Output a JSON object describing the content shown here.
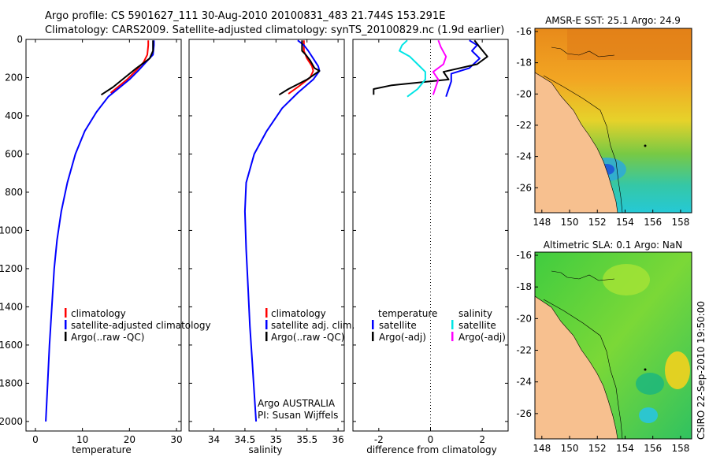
{
  "title": {
    "line1": "Argo profile: CS 5901627_111 30-Aug-2010 20100831_483 21.744S 153.291E",
    "line2": "Climatology: CARS2009. Satellite-adjusted climatology: synTS_20100829.nc (1.9d earlier)"
  },
  "colors": {
    "climatology": "#ff0000",
    "satellite": "#0000ff",
    "argo": "#000000",
    "cyan": "#00e5e5",
    "magenta": "#ff00ff",
    "land": "#f7c08f"
  },
  "footer_text": "CSIRO  22-Sep-2010 19:50:00",
  "credit": {
    "line1": "Argo AUSTRALIA",
    "line2": "PI: Susan Wijffels"
  },
  "chart_data": [
    {
      "type": "line",
      "xlabel": "temperature",
      "xlim": [
        -2,
        31
      ],
      "ylim": [
        0,
        2050
      ],
      "y_reversed": true,
      "xticks": [
        0,
        10,
        20,
        30
      ],
      "yticks": [
        0,
        200,
        400,
        600,
        800,
        1000,
        1200,
        1400,
        1600,
        1800,
        2000
      ],
      "legend": [
        "climatology",
        "satellite-adjusted climatology",
        "Argo(..raw -QC)"
      ],
      "series": [
        {
          "name": "climatology",
          "color": "#ff0000",
          "points": [
            [
              24,
              5
            ],
            [
              24,
              30
            ],
            [
              23.8,
              80
            ],
            [
              23,
              120
            ],
            [
              21.5,
              160
            ],
            [
              19.5,
              210
            ],
            [
              17.5,
              250
            ],
            [
              16,
              280
            ]
          ]
        },
        {
          "name": "satellite-adjusted climatology",
          "color": "#0000ff",
          "points": [
            [
              25.2,
              5
            ],
            [
              25.2,
              30
            ],
            [
              25,
              80
            ],
            [
              23.5,
              120
            ],
            [
              22,
              160
            ],
            [
              20,
              210
            ],
            [
              18,
              250
            ],
            [
              15.5,
              300
            ],
            [
              13,
              380
            ],
            [
              10.5,
              480
            ],
            [
              8.5,
              600
            ],
            [
              6.8,
              750
            ],
            [
              5.5,
              900
            ],
            [
              4.6,
              1050
            ],
            [
              4,
              1200
            ],
            [
              3.5,
              1400
            ],
            [
              3,
              1600
            ],
            [
              2.6,
              1800
            ],
            [
              2.2,
              2000
            ]
          ]
        },
        {
          "name": "Argo(..raw -QC)",
          "color": "#000000",
          "points": [
            [
              25,
              5
            ],
            [
              25,
              60
            ],
            [
              24.3,
              100
            ],
            [
              21.5,
              150
            ],
            [
              18.5,
              210
            ],
            [
              16.5,
              250
            ],
            [
              14,
              290
            ]
          ]
        }
      ]
    },
    {
      "type": "line",
      "xlabel": "salinity",
      "xlim": [
        33.6,
        36.1
      ],
      "ylim": [
        0,
        2050
      ],
      "y_reversed": true,
      "xticks": [
        34,
        34.5,
        35,
        35.5,
        36
      ],
      "legend": [
        "climatology",
        "satellite adj. clim.",
        "Argo(..raw -QC)"
      ],
      "series": [
        {
          "name": "climatology",
          "color": "#ff0000",
          "points": [
            [
              35.45,
              5
            ],
            [
              35.45,
              60
            ],
            [
              35.5,
              100
            ],
            [
              35.58,
              140
            ],
            [
              35.6,
              165
            ],
            [
              35.55,
              200
            ],
            [
              35.35,
              250
            ],
            [
              35.2,
              285
            ]
          ]
        },
        {
          "name": "satellite adj. clim.",
          "color": "#0000ff",
          "points": [
            [
              35.35,
              5
            ],
            [
              35.45,
              30
            ],
            [
              35.52,
              60
            ],
            [
              35.6,
              100
            ],
            [
              35.68,
              140
            ],
            [
              35.7,
              165
            ],
            [
              35.6,
              210
            ],
            [
              35.35,
              280
            ],
            [
              35.1,
              360
            ],
            [
              34.85,
              480
            ],
            [
              34.65,
              600
            ],
            [
              34.52,
              750
            ],
            [
              34.5,
              900
            ],
            [
              34.52,
              1100
            ],
            [
              34.55,
              1300
            ],
            [
              34.58,
              1500
            ],
            [
              34.62,
              1700
            ],
            [
              34.65,
              1850
            ],
            [
              34.68,
              2000
            ]
          ]
        },
        {
          "name": "Argo(..raw -QC)",
          "color": "#000000",
          "points": [
            [
              35.42,
              5
            ],
            [
              35.42,
              60
            ],
            [
              35.48,
              80
            ],
            [
              35.55,
              110
            ],
            [
              35.62,
              150
            ],
            [
              35.7,
              165
            ],
            [
              35.5,
              210
            ],
            [
              35.2,
              260
            ],
            [
              35.05,
              290
            ]
          ]
        }
      ]
    },
    {
      "type": "line",
      "xlabel": "difference from climatology",
      "xlim": [
        -3,
        3
      ],
      "ylim": [
        0,
        2050
      ],
      "y_reversed": true,
      "xticks": [
        -2,
        0,
        2
      ],
      "legend": [
        "temperature",
        "salinity",
        "satellite",
        "Argo(-adj)",
        "satellite",
        "Argo(-adj)"
      ],
      "legend_headers": [
        "temperature",
        "salinity"
      ],
      "legend_items": [
        "satellite",
        "Argo(-adj)",
        "satellite",
        "Argo(-adj)"
      ],
      "series": [
        {
          "name": "temperature satellite",
          "color": "#0000ff",
          "points": [
            [
              1.5,
              5
            ],
            [
              1.8,
              30
            ],
            [
              1.6,
              60
            ],
            [
              1.9,
              100
            ],
            [
              1.5,
              150
            ],
            [
              0.8,
              180
            ],
            [
              0.8,
              220
            ],
            [
              0.7,
              260
            ],
            [
              0.6,
              300
            ]
          ]
        },
        {
          "name": "temperature Argo(-adj)",
          "color": "#000000",
          "points": [
            [
              1.7,
              5
            ],
            [
              1.9,
              40
            ],
            [
              2.2,
              90
            ],
            [
              1.8,
              130
            ],
            [
              0.5,
              170
            ],
            [
              0.7,
              210
            ],
            [
              -1.5,
              240
            ],
            [
              -2.2,
              260
            ],
            [
              -2.2,
              290
            ]
          ]
        },
        {
          "name": "salinity satellite",
          "color": "#00e5e5",
          "points": [
            [
              -0.9,
              5
            ],
            [
              -1.1,
              30
            ],
            [
              -1.2,
              60
            ],
            [
              -0.8,
              90
            ],
            [
              -0.5,
              130
            ],
            [
              -0.2,
              170
            ],
            [
              -0.2,
              210
            ],
            [
              -0.5,
              260
            ],
            [
              -0.9,
              300
            ]
          ]
        },
        {
          "name": "salinity Argo(-adj)",
          "color": "#ff00ff",
          "points": [
            [
              0.3,
              5
            ],
            [
              0.4,
              40
            ],
            [
              0.6,
              90
            ],
            [
              0.5,
              130
            ],
            [
              0.1,
              170
            ],
            [
              0.3,
              210
            ],
            [
              0.2,
              250
            ],
            [
              0.1,
              290
            ]
          ]
        }
      ]
    },
    {
      "type": "heatmap",
      "title": "AMSR-E SST: 25.1  Argo: 24.9",
      "xticks": [
        148,
        150,
        152,
        154,
        156,
        158
      ],
      "yticks": [
        -16,
        -18,
        -20,
        -22,
        -24,
        -26
      ],
      "xlim": [
        147.5,
        158.8
      ],
      "ylim": [
        -27.6,
        -15.8
      ]
    },
    {
      "type": "heatmap",
      "title": "Altimetric SLA: 0.1  Argo: NaN",
      "xticks": [
        148,
        150,
        152,
        154,
        156,
        158
      ],
      "yticks": [
        -16,
        -18,
        -20,
        -22,
        -24,
        -26
      ],
      "xlim": [
        147.5,
        158.8
      ],
      "ylim": [
        -27.6,
        -15.8
      ]
    }
  ]
}
